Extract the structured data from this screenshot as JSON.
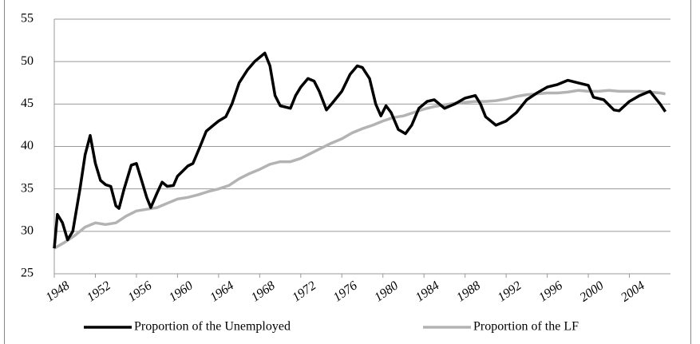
{
  "chart_data": {
    "type": "line",
    "xlim": [
      1948,
      2008
    ],
    "xticks": [
      1948,
      1952,
      1956,
      1960,
      1964,
      1968,
      1972,
      1976,
      1980,
      1984,
      1988,
      1992,
      1996,
      2000,
      2004
    ],
    "ylim": [
      25,
      55
    ],
    "yticks": [
      25,
      30,
      35,
      40,
      45,
      50,
      55
    ],
    "grid": true,
    "series": [
      {
        "name": "Proportion of the Unemployed",
        "color": "#000000",
        "x": [
          1948.0,
          1948.3,
          1948.8,
          1949.3,
          1949.8,
          1950.5,
          1951,
          1951.5,
          1952,
          1952.5,
          1953,
          1953.5,
          1954,
          1954.3,
          1954.8,
          1955.5,
          1956,
          1956.5,
          1957,
          1957.4,
          1958,
          1958.5,
          1959,
          1959.6,
          1960,
          1961,
          1961.5,
          1962.2,
          1962.8,
          1963.5,
          1964,
          1964.7,
          1965.3,
          1966,
          1966.8,
          1967.5,
          1968,
          1968.5,
          1969,
          1969.5,
          1970,
          1971,
          1971.5,
          1972,
          1972.7,
          1973.3,
          1973.8,
          1974.5,
          1975,
          1976,
          1976.8,
          1977.5,
          1978,
          1978.7,
          1979.3,
          1979.8,
          1980.3,
          1980.8,
          1981.5,
          1982.2,
          1982.8,
          1983.5,
          1984.3,
          1985,
          1986,
          1987,
          1988,
          1989,
          1989.5,
          1990,
          1991,
          1992,
          1993,
          1994,
          1995,
          1996,
          1997,
          1998,
          1999,
          2000,
          2000.5,
          2001.5,
          2002.5,
          2003,
          2004,
          2005,
          2006,
          2007,
          2007.5
        ],
        "values": [
          28,
          32,
          31,
          29,
          30,
          35,
          39,
          41.3,
          38,
          36,
          35.5,
          35.3,
          33,
          32.7,
          35,
          37.8,
          38,
          36,
          34,
          32.8,
          34.5,
          35.8,
          35.3,
          35.4,
          36.5,
          37.7,
          38,
          40,
          41.8,
          42.5,
          43,
          43.5,
          45,
          47.5,
          49,
          50,
          50.5,
          51,
          49.5,
          46,
          44.8,
          44.5,
          46,
          47,
          48,
          47.7,
          46.5,
          44.3,
          45,
          46.5,
          48.5,
          49.5,
          49.3,
          48,
          45,
          43.6,
          44.8,
          44,
          42,
          41.5,
          42.5,
          44.5,
          45.3,
          45.5,
          44.5,
          45,
          45.7,
          46,
          45,
          43.5,
          42.5,
          43,
          44,
          45.5,
          46.3,
          47,
          47.3,
          47.8,
          47.5,
          47.2,
          45.8,
          45.5,
          44.3,
          44.2,
          45.3,
          46,
          46.5,
          45,
          44.1
        ]
      },
      {
        "name": "Proportion of the LF",
        "color": "#b3b3b3",
        "x": [
          1948,
          1949,
          1950,
          1951,
          1952,
          1953,
          1954,
          1955,
          1956,
          1957,
          1958,
          1959,
          1960,
          1961,
          1962,
          1963,
          1964,
          1965,
          1966,
          1967,
          1968,
          1969,
          1970,
          1971,
          1972,
          1973,
          1974,
          1975,
          1976,
          1977,
          1978,
          1979,
          1980,
          1981,
          1982,
          1983,
          1984,
          1985,
          1986,
          1987,
          1988,
          1989,
          1990,
          1991,
          1992,
          1993,
          1994,
          1995,
          1996,
          1997,
          1998,
          1999,
          2000,
          2001,
          2002,
          2003,
          2004,
          2005,
          2006,
          2007,
          2007.5
        ],
        "values": [
          28,
          28.7,
          29.5,
          30.5,
          31,
          30.8,
          31,
          31.8,
          32.4,
          32.6,
          32.8,
          33.3,
          33.8,
          34,
          34.3,
          34.7,
          35,
          35.4,
          36.2,
          36.8,
          37.3,
          37.9,
          38.2,
          38.2,
          38.6,
          39.2,
          39.8,
          40.4,
          40.9,
          41.6,
          42.1,
          42.5,
          43,
          43.4,
          43.6,
          44,
          44.4,
          44.7,
          44.9,
          45.1,
          45.2,
          45.3,
          45.3,
          45.4,
          45.6,
          45.9,
          46.1,
          46.2,
          46.3,
          46.3,
          46.4,
          46.6,
          46.5,
          46.5,
          46.6,
          46.5,
          46.5,
          46.5,
          46.4,
          46.3,
          46.2
        ]
      }
    ]
  }
}
